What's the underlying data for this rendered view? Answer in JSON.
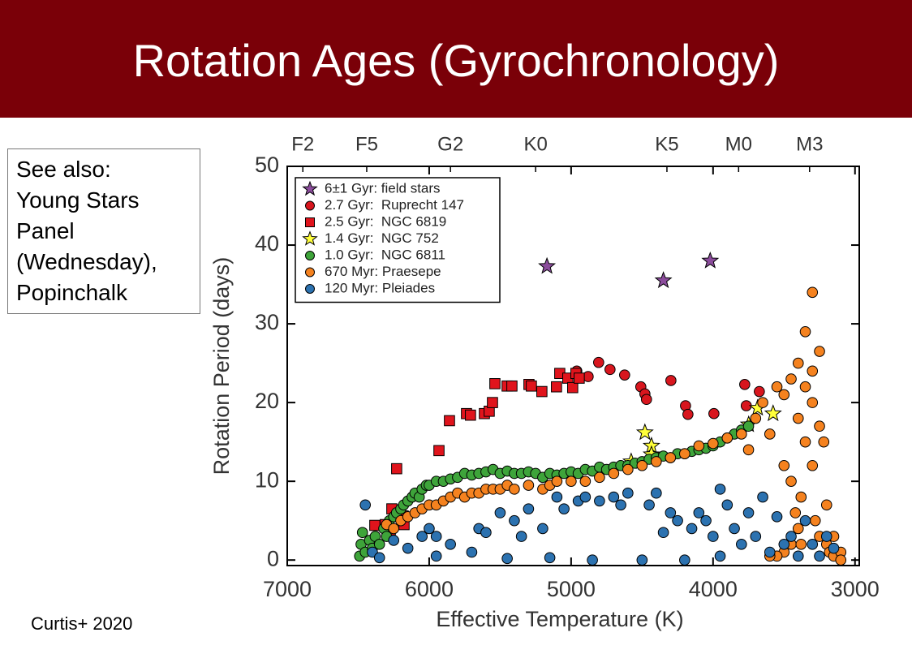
{
  "header": {
    "title": "Rotation Ages (Gyrochronology)"
  },
  "note": {
    "lines": [
      "See also:",
      "Young Stars",
      "Panel",
      "(Wednesday),",
      "Popinchalk"
    ]
  },
  "citation": "Curtis+ 2020",
  "chart_data": {
    "type": "scatter",
    "xlabel": "Effective Temperature (K)",
    "ylabel": "Rotation Period (days)",
    "xlim": [
      7000,
      2970
    ],
    "ylim": [
      -0.7,
      50
    ],
    "xticks": [
      7000,
      6000,
      5000,
      4000,
      3000
    ],
    "yticks": [
      0,
      10,
      20,
      30,
      40,
      50
    ],
    "x2ticks": [
      {
        "value": 6890,
        "label": "F2"
      },
      {
        "value": 6440,
        "label": "F5"
      },
      {
        "value": 5850,
        "label": "G2"
      },
      {
        "value": 5250,
        "label": "K0"
      },
      {
        "value": 4325,
        "label": "K5"
      },
      {
        "value": 3820,
        "label": "M0"
      },
      {
        "value": 3320,
        "label": "M3"
      }
    ],
    "legend": "upper left",
    "series": [
      {
        "name": "6±1 Gyr: field stars",
        "color": "#8b4c9c",
        "marker": "star",
        "x": [
          5170,
          4350,
          4020
        ],
        "values": [
          37.3,
          35.5,
          38.0
        ]
      },
      {
        "name": "2.7 Gyr:  Ruprecht 147",
        "color": "#d8161e",
        "marker": "circle",
        "x": [
          4960,
          4880,
          4806,
          4726,
          4623,
          4509,
          4480,
          4469,
          4297,
          4194,
          4177,
          3994,
          3777,
          3766,
          3674
        ],
        "values": [
          24.0,
          23.3,
          25.1,
          24.2,
          23.5,
          22.0,
          21.1,
          20.4,
          22.8,
          19.6,
          18.5,
          18.6,
          22.3,
          19.6,
          21.4
        ]
      },
      {
        "name": "2.5 Gyr:  NGC 6819",
        "color": "#e0141c",
        "marker": "square",
        "x": [
          6383,
          6309,
          6274,
          6263,
          6183,
          6177,
          6229,
          5931,
          5857,
          5737,
          5709,
          5611,
          5577,
          5554,
          5537,
          5451,
          5417,
          5297,
          5280,
          5206,
          5103,
          5080,
          5023,
          4989,
          4966,
          4943
        ],
        "values": [
          4.4,
          4.5,
          3.8,
          6.5,
          5.6,
          4.5,
          11.6,
          13.9,
          17.7,
          18.6,
          18.4,
          18.6,
          18.9,
          20.0,
          22.4,
          22.1,
          22.1,
          22.3,
          22.1,
          21.4,
          22.0,
          23.7,
          23.1,
          21.9,
          23.7,
          23.1
        ]
      },
      {
        "name": "1.4 Gyr:  NGC 752",
        "color": "#ffff3a",
        "marker": "star",
        "x": [
          4577,
          4480,
          4434,
          4434,
          3749,
          3686,
          3577
        ],
        "values": [
          12.5,
          16.2,
          14.5,
          13.4,
          17.2,
          19.3,
          18.6
        ]
      },
      {
        "name": "1.0 Gyr:  NGC 6811",
        "color": "#3ea43a",
        "marker": "circle",
        "x": [
          6490,
          6480,
          6470,
          6450,
          6420,
          6400,
          6380,
          6350,
          6320,
          6300,
          6280,
          6250,
          6230,
          6200,
          6180,
          6150,
          6120,
          6100,
          6070,
          6050,
          6020,
          6000,
          5950,
          5900,
          5850,
          5800,
          5750,
          5700,
          5650,
          5600,
          5550,
          5500,
          5450,
          5400,
          5350,
          5300,
          5250,
          5200,
          5150,
          5100,
          5050,
          5000,
          4950,
          4900,
          4850,
          4800,
          4750,
          4700,
          4650,
          4600,
          4550,
          4500,
          4450,
          4400,
          4350,
          4300,
          4250,
          4200,
          4150,
          4100,
          4050,
          4000,
          3950,
          3900,
          3850,
          3800,
          3750
        ],
        "values": [
          0.5,
          2,
          3.5,
          1,
          2.5,
          1.5,
          3,
          2,
          4,
          3,
          5,
          5.5,
          6,
          6.5,
          7,
          7.5,
          8,
          8.5,
          8,
          9,
          9.5,
          9.5,
          10,
          10,
          10.3,
          10.5,
          11,
          10.8,
          11,
          11.2,
          11.5,
          11,
          11.3,
          11,
          11,
          11.2,
          11,
          10.5,
          11,
          10.8,
          11,
          11.2,
          11,
          11.5,
          11.3,
          11.8,
          11.5,
          11.8,
          12,
          12,
          12.3,
          12.5,
          12.8,
          13,
          13.2,
          13,
          13.5,
          13.5,
          13.8,
          14,
          14.2,
          14.5,
          15,
          15.5,
          16,
          16.5,
          17
        ]
      },
      {
        "name": "670 Myr: Praesepe",
        "color": "#f5821f",
        "marker": "circle",
        "x": [
          6300,
          6250,
          6200,
          6150,
          6100,
          6050,
          6000,
          5950,
          5900,
          5850,
          5800,
          5750,
          5700,
          5650,
          5600,
          5550,
          5500,
          5450,
          5400,
          5300,
          5200,
          5150,
          5100,
          5000,
          4900,
          4800,
          4700,
          4600,
          4500,
          4400,
          4300,
          4200,
          4100,
          4000,
          3900,
          3800,
          3750,
          3700,
          3650,
          3600,
          3550,
          3500,
          3500,
          3450,
          3450,
          3400,
          3400,
          3380,
          3350,
          3350,
          3300,
          3300,
          3300,
          3280,
          3250,
          3250,
          3250,
          3200,
          3200,
          3180,
          3150,
          3150,
          3100,
          3100,
          3400,
          3450,
          3500,
          3550,
          3350,
          3300,
          3220,
          3380,
          3420,
          3600
        ],
        "values": [
          4.5,
          4,
          5,
          5.5,
          6,
          6.5,
          7,
          7,
          7.5,
          8,
          8.5,
          8,
          8.5,
          8.5,
          9,
          9,
          9,
          9.5,
          9,
          9.5,
          9,
          9.5,
          10,
          10,
          10,
          10.5,
          11,
          11.5,
          12,
          12.5,
          13,
          13.5,
          14.5,
          14.8,
          15.5,
          16,
          14,
          18,
          20,
          16,
          22,
          12,
          21,
          10,
          23,
          25,
          18,
          8,
          22,
          15,
          34,
          20,
          12,
          5,
          26.5,
          17,
          3,
          2,
          7,
          1,
          0.5,
          3,
          1,
          0,
          4,
          2,
          1,
          0.5,
          29,
          24,
          15,
          2,
          6,
          0.5
        ]
      },
      {
        "name": "120 Myr: Pleiades",
        "color": "#2c72b0",
        "marker": "circle",
        "x": [
          6450,
          6400,
          6350,
          6250,
          6150,
          6050,
          6000,
          5950,
          5950,
          5850,
          5700,
          5650,
          5600,
          5500,
          5450,
          5400,
          5350,
          5300,
          5200,
          5150,
          5100,
          5050,
          4950,
          4900,
          4850,
          4800,
          4700,
          4650,
          4600,
          4500,
          4450,
          4400,
          4350,
          4300,
          4250,
          4200,
          4150,
          4100,
          4050,
          4000,
          3950,
          3950,
          3900,
          3850,
          3800,
          3750,
          3700,
          3650,
          3600,
          3550,
          3500,
          3450,
          3400,
          3350,
          3300,
          3250,
          3200,
          3150
        ],
        "values": [
          7,
          1,
          0.3,
          2.5,
          1.5,
          3,
          4,
          3,
          0.5,
          2,
          1,
          4,
          3.5,
          6,
          0.2,
          5,
          3,
          6.5,
          4,
          0.3,
          8,
          6.5,
          7.5,
          8,
          0,
          7.5,
          8,
          7,
          8.5,
          0,
          7,
          8.5,
          3.5,
          6,
          5,
          0,
          4,
          6,
          5,
          3,
          9,
          0.5,
          7,
          4,
          2,
          6,
          3,
          8,
          1,
          5.5,
          2,
          3,
          0.5,
          5,
          2,
          0.5,
          3,
          1.5
        ]
      }
    ]
  }
}
